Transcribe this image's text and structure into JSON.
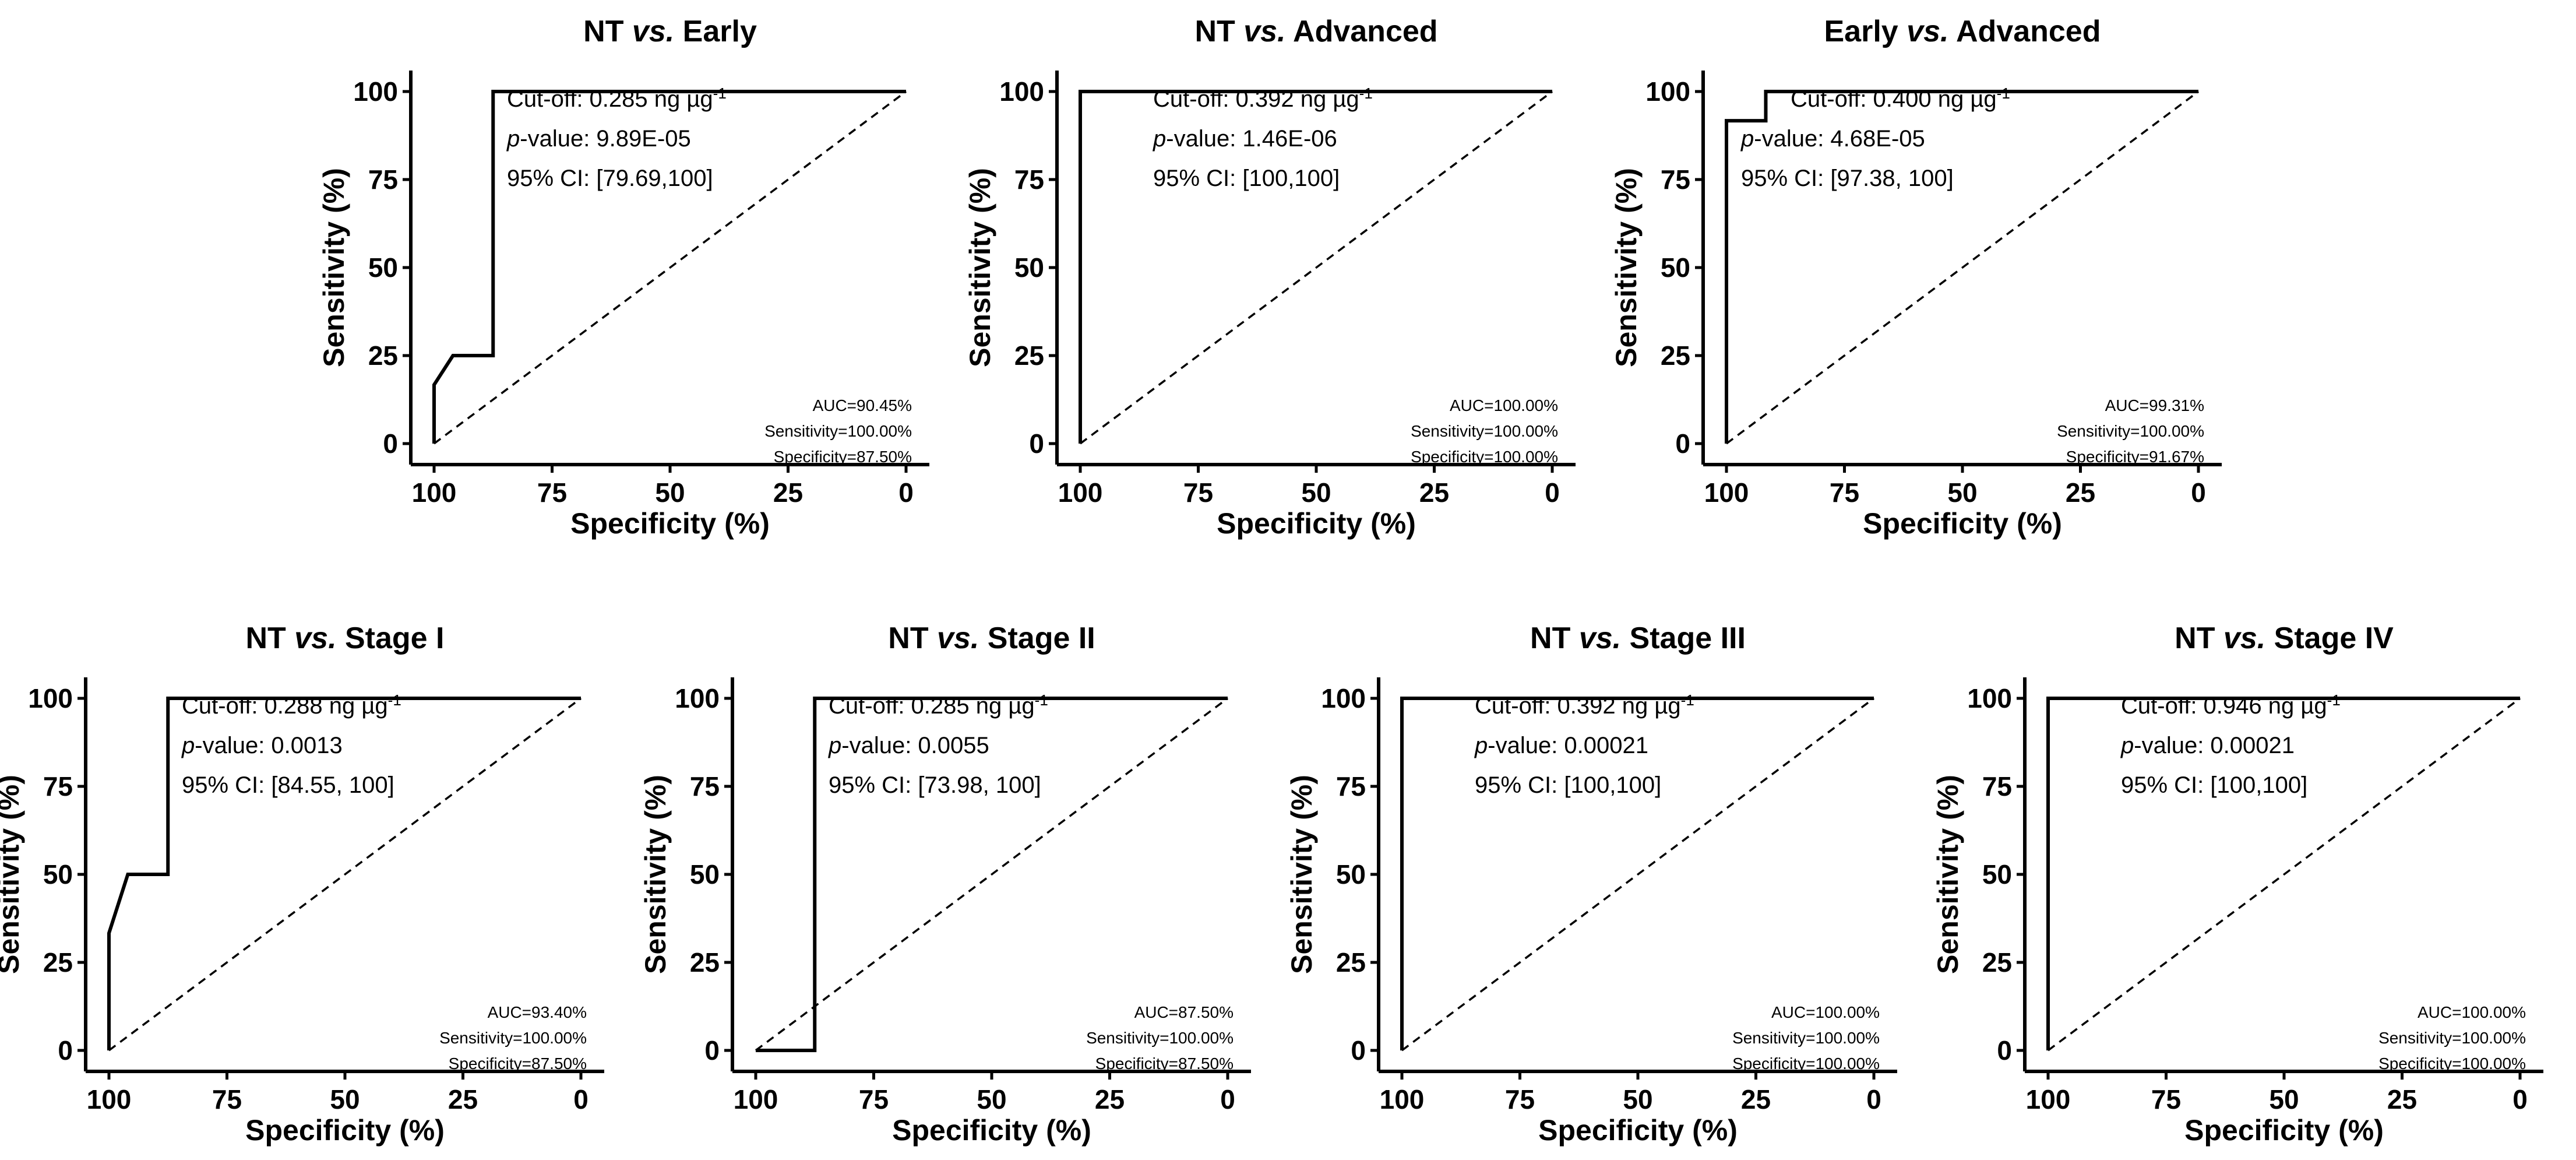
{
  "chart_data": [
    {
      "type": "line",
      "title": {
        "a": "NT ",
        "b": "vs.",
        "c": " Early"
      },
      "xlabel": "Specificity (%)",
      "ylabel": "Sensitivity (%)",
      "xlim": [
        100,
        0
      ],
      "ylim": [
        0,
        100
      ],
      "x_ticks": [
        "100",
        "75",
        "50",
        "25",
        "0"
      ],
      "y_ticks": [
        "0",
        "25",
        "50",
        "75",
        "100"
      ],
      "roc": {
        "specificity": [
          100,
          100,
          96,
          87.5,
          87.5,
          0
        ],
        "sensitivity": [
          0,
          16.7,
          25,
          25,
          100,
          100
        ]
      },
      "diagonal": {
        "specificity": [
          100,
          0
        ],
        "sensitivity": [
          0,
          100
        ]
      },
      "annotations": {
        "cutoff_label": "Cut-off: ",
        "cutoff_value": "0.285 ng µg",
        "cutoff_exp": "-1",
        "p_label": "p",
        "p_value": "-value: 9.89E-05",
        "ci": "95% CI: [79.69,100]"
      },
      "stats": [
        "AUC=90.45%",
        "Sensitivity=100.00%",
        "Specificity=87.50%"
      ]
    },
    {
      "type": "line",
      "title": {
        "a": "NT ",
        "b": "vs.",
        "c": " Advanced"
      },
      "xlabel": "Specificity (%)",
      "ylabel": "Sensitivity (%)",
      "xlim": [
        100,
        0
      ],
      "ylim": [
        0,
        100
      ],
      "x_ticks": [
        "100",
        "75",
        "50",
        "25",
        "0"
      ],
      "y_ticks": [
        "0",
        "25",
        "50",
        "75",
        "100"
      ],
      "roc": {
        "specificity": [
          100,
          100,
          0
        ],
        "sensitivity": [
          0,
          100,
          100
        ]
      },
      "diagonal": {
        "specificity": [
          100,
          0
        ],
        "sensitivity": [
          0,
          100
        ]
      },
      "annotations": {
        "cutoff_label": "Cut-off: ",
        "cutoff_value": "0.392 ng µg",
        "cutoff_exp": "-1",
        "p_label": "p",
        "p_value": "-value: 1.46E-06",
        "ci": "95% CI: [100,100]"
      },
      "stats": [
        "AUC=100.00%",
        "Sensitivity=100.00%",
        "Specificity=100.00%"
      ]
    },
    {
      "type": "line",
      "title": {
        "a": "Early ",
        "b": "vs.",
        "c": " Advanced"
      },
      "xlabel": "Specificity (%)",
      "ylabel": "Sensitivity (%)",
      "xlim": [
        100,
        0
      ],
      "ylim": [
        0,
        100
      ],
      "x_ticks": [
        "100",
        "75",
        "50",
        "25",
        "0"
      ],
      "y_ticks": [
        "0",
        "25",
        "50",
        "75",
        "100"
      ],
      "roc": {
        "specificity": [
          100,
          100,
          91.67,
          91.67,
          0
        ],
        "sensitivity": [
          0,
          91.7,
          91.7,
          100,
          100
        ]
      },
      "diagonal": {
        "specificity": [
          100,
          0
        ],
        "sensitivity": [
          0,
          100
        ]
      },
      "annotations": {
        "cutoff_label": "Cut-off: ",
        "cutoff_value": "0.400 ng µg",
        "cutoff_exp": "-1",
        "p_label": "p",
        "p_value": "-value: 4.68E-05",
        "ci": "95% CI: [97.38, 100]"
      },
      "stats": [
        "AUC=99.31%",
        "Sensitivity=100.00%",
        "Specificity=91.67%"
      ]
    },
    {
      "type": "line",
      "title": {
        "a": "NT ",
        "b": "vs.",
        "c": " Stage I"
      },
      "xlabel": "Specificity (%)",
      "ylabel": "Sensitivity (%)",
      "xlim": [
        100,
        0
      ],
      "ylim": [
        0,
        100
      ],
      "x_ticks": [
        "100",
        "75",
        "50",
        "25",
        "0"
      ],
      "y_ticks": [
        "0",
        "25",
        "50",
        "75",
        "100"
      ],
      "roc": {
        "specificity": [
          100,
          100,
          96,
          87.5,
          87.5,
          0
        ],
        "sensitivity": [
          0,
          33.3,
          50,
          50,
          100,
          100
        ]
      },
      "diagonal": {
        "specificity": [
          100,
          0
        ],
        "sensitivity": [
          0,
          100
        ]
      },
      "annotations": {
        "cutoff_label": "Cut-off: ",
        "cutoff_value": "0.288 ng µg",
        "cutoff_exp": "-1",
        "p_label": "p",
        "p_value": "-value: 0.0013",
        "ci": "95% CI: [84.55, 100]"
      },
      "stats": [
        "AUC=93.40%",
        "Sensitivity=100.00%",
        "Specificity=87.50%"
      ]
    },
    {
      "type": "line",
      "title": {
        "a": "NT ",
        "b": "vs.",
        "c": " Stage II"
      },
      "xlabel": "Specificity (%)",
      "ylabel": "Sensitivity (%)",
      "xlim": [
        100,
        0
      ],
      "ylim": [
        0,
        100
      ],
      "x_ticks": [
        "100",
        "75",
        "50",
        "25",
        "0"
      ],
      "y_ticks": [
        "0",
        "25",
        "50",
        "75",
        "100"
      ],
      "roc": {
        "specificity": [
          100,
          87.5,
          87.5,
          0
        ],
        "sensitivity": [
          0,
          0,
          100,
          100
        ]
      },
      "diagonal": {
        "specificity": [
          100,
          0
        ],
        "sensitivity": [
          0,
          100
        ]
      },
      "annotations": {
        "cutoff_label": "Cut-off: ",
        "cutoff_value": "0.285 ng µg",
        "cutoff_exp": "-1",
        "p_label": "p",
        "p_value": "-value: 0.0055",
        "ci": "95% CI: [73.98, 100]"
      },
      "stats": [
        "AUC=87.50%",
        "Sensitivity=100.00%",
        "Specificity=87.50%"
      ]
    },
    {
      "type": "line",
      "title": {
        "a": "NT ",
        "b": "vs.",
        "c": " Stage III"
      },
      "xlabel": "Specificity (%)",
      "ylabel": "Sensitivity (%)",
      "xlim": [
        100,
        0
      ],
      "ylim": [
        0,
        100
      ],
      "x_ticks": [
        "100",
        "75",
        "50",
        "25",
        "0"
      ],
      "y_ticks": [
        "0",
        "25",
        "50",
        "75",
        "100"
      ],
      "roc": {
        "specificity": [
          100,
          100,
          0
        ],
        "sensitivity": [
          0,
          100,
          100
        ]
      },
      "diagonal": {
        "specificity": [
          100,
          0
        ],
        "sensitivity": [
          0,
          100
        ]
      },
      "annotations": {
        "cutoff_label": "Cut-off: ",
        "cutoff_value": "0.392 ng µg",
        "cutoff_exp": "-1",
        "p_label": "p",
        "p_value": "-value: 0.00021",
        "ci": "95% CI: [100,100]"
      },
      "stats": [
        "AUC=100.00%",
        "Sensitivity=100.00%",
        "Specificity=100.00%"
      ]
    },
    {
      "type": "line",
      "title": {
        "a": "NT ",
        "b": "vs.",
        "c": " Stage IV"
      },
      "xlabel": "Specificity (%)",
      "ylabel": "Sensitivity (%)",
      "xlim": [
        100,
        0
      ],
      "ylim": [
        0,
        100
      ],
      "x_ticks": [
        "100",
        "75",
        "50",
        "25",
        "0"
      ],
      "y_ticks": [
        "0",
        "25",
        "50",
        "75",
        "100"
      ],
      "roc": {
        "specificity": [
          100,
          100,
          0
        ],
        "sensitivity": [
          0,
          100,
          100
        ]
      },
      "diagonal": {
        "specificity": [
          100,
          0
        ],
        "sensitivity": [
          0,
          100
        ]
      },
      "annotations": {
        "cutoff_label": "Cut-off: ",
        "cutoff_value": "0.946 ng µg",
        "cutoff_exp": "-1",
        "p_label": "p",
        "p_value": "-value: 0.00021",
        "ci": "95% CI: [100,100]"
      },
      "stats": [
        "AUC=100.00%",
        "Sensitivity=100.00%",
        "Specificity=100.00%"
      ]
    }
  ]
}
